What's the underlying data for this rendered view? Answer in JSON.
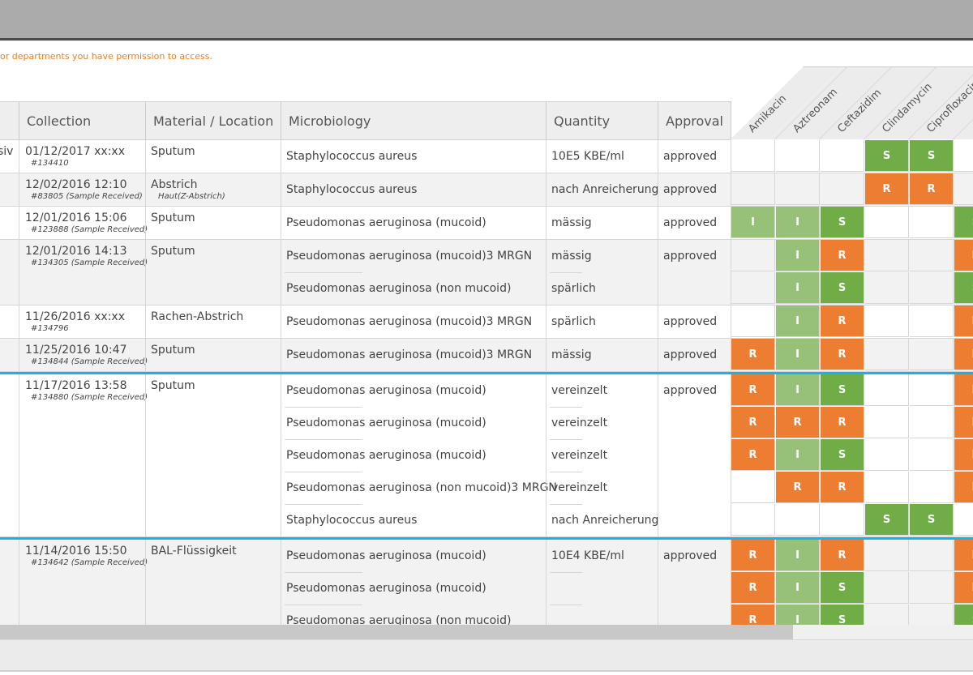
{
  "notice": "or departments you have permission to access.",
  "columns": {
    "collection": "Collection",
    "material": "Material / Location",
    "microbiology": "Microbiology",
    "quantity": "Quantity",
    "approval": "Approval"
  },
  "antibiotics": [
    "Amikacin",
    "Aztreonam",
    "Ceftazidim",
    "Clindamycin",
    "Ciprofloxacin",
    ""
  ],
  "colors": {
    "S": "#70ad47",
    "I": "#97c078",
    "R": "#ed7d31",
    "highlight": "#14b4ea",
    "notice": "#ee7d22"
  },
  "groups": [
    {
      "first": "siv",
      "date": "01/12/2017 xx:xx",
      "id": "#134410",
      "material": "Sputum",
      "location": "",
      "approval": "approved",
      "blue": false,
      "rows": [
        {
          "organism": "Staphylococcus aureus",
          "quantity": "10E5 KBE/ml",
          "results": [
            "",
            "",
            "",
            "S",
            "S",
            ""
          ]
        }
      ]
    },
    {
      "first": "",
      "date": "12/02/2016 12:10",
      "id": "#83805 (Sample Received)",
      "material": "Abstrich",
      "location": "Haut(Z-Abstrich)",
      "approval": "approved",
      "blue": false,
      "rows": [
        {
          "organism": "Staphylococcus aureus",
          "quantity": "nach Anreicherung",
          "results": [
            "",
            "",
            "",
            "R",
            "R",
            ""
          ]
        }
      ]
    },
    {
      "first": "",
      "date": "12/01/2016 15:06",
      "id": "#123888 (Sample Received)",
      "material": "Sputum",
      "location": "",
      "approval": "approved",
      "blue": false,
      "rows": [
        {
          "organism": "Pseudomonas aeruginosa (mucoid)",
          "quantity": "mässig",
          "results": [
            "I",
            "I",
            "S",
            "",
            "",
            "S"
          ]
        }
      ]
    },
    {
      "first": "",
      "date": "12/01/2016 14:13",
      "id": "#134305 (Sample Received)",
      "material": "Sputum",
      "location": "",
      "approval": "approved",
      "blue": false,
      "rows": [
        {
          "organism": "Pseudomonas aeruginosa (mucoid)3 MRGN",
          "quantity": "mässig",
          "results": [
            "",
            "I",
            "R",
            "",
            "",
            "R"
          ]
        },
        {
          "organism": "Pseudomonas aeruginosa (non mucoid)",
          "quantity": "spärlich",
          "results": [
            "",
            "I",
            "S",
            "",
            "",
            "S"
          ]
        }
      ]
    },
    {
      "first": "",
      "date": "11/26/2016 xx:xx",
      "id": "#134796",
      "material": "Rachen-Abstrich",
      "location": "",
      "approval": "approved",
      "blue": false,
      "rows": [
        {
          "organism": "Pseudomonas aeruginosa (mucoid)3 MRGN",
          "quantity": "spärlich",
          "results": [
            "",
            "I",
            "R",
            "",
            "",
            "R"
          ]
        }
      ]
    },
    {
      "first": "",
      "date": "11/25/2016 10:47",
      "id": "#134844 (Sample Received)",
      "material": "Sputum",
      "location": "",
      "approval": "approved",
      "blue": false,
      "rows": [
        {
          "organism": "Pseudomonas aeruginosa (mucoid)3 MRGN",
          "quantity": "mässig",
          "results": [
            "R",
            "I",
            "R",
            "",
            "",
            "R"
          ]
        }
      ]
    },
    {
      "first": "",
      "date": "11/17/2016 13:58",
      "id": "#134880 (Sample Received)",
      "material": "Sputum",
      "location": "",
      "approval": "approved",
      "blue": true,
      "rows": [
        {
          "organism": "Pseudomonas aeruginosa (mucoid)",
          "quantity": "vereinzelt",
          "results": [
            "R",
            "I",
            "S",
            "",
            "",
            "R"
          ]
        },
        {
          "organism": "Pseudomonas aeruginosa (mucoid)",
          "quantity": "vereinzelt",
          "results": [
            "R",
            "R",
            "R",
            "",
            "",
            "R"
          ]
        },
        {
          "organism": "Pseudomonas aeruginosa (mucoid)",
          "quantity": "vereinzelt",
          "results": [
            "R",
            "I",
            "S",
            "",
            "",
            "R"
          ]
        },
        {
          "organism": "Pseudomonas aeruginosa (non mucoid)3 MRGN",
          "quantity": "vereinzelt",
          "results": [
            "",
            "R",
            "R",
            "",
            "",
            "R"
          ]
        },
        {
          "organism": "Staphylococcus aureus",
          "quantity": "nach Anreicherung",
          "results": [
            "",
            "",
            "",
            "S",
            "S",
            ""
          ]
        }
      ]
    },
    {
      "first": "",
      "date": "11/14/2016 15:50",
      "id": "#134642 (Sample Received)",
      "material": "BAL-Flüssigkeit",
      "location": "",
      "approval": "approved",
      "blue": true,
      "rows": [
        {
          "organism": "Pseudomonas aeruginosa (mucoid)",
          "quantity": "10E4 KBE/ml",
          "results": [
            "R",
            "I",
            "R",
            "",
            "",
            "R"
          ]
        },
        {
          "organism": "Pseudomonas aeruginosa (mucoid)",
          "quantity": "",
          "results": [
            "R",
            "I",
            "S",
            "",
            "",
            "R"
          ]
        },
        {
          "organism": "Pseudomonas aeruginosa (non mucoid)",
          "quantity": "",
          "results": [
            "R",
            "I",
            "S",
            "",
            "",
            "S"
          ]
        }
      ]
    }
  ]
}
